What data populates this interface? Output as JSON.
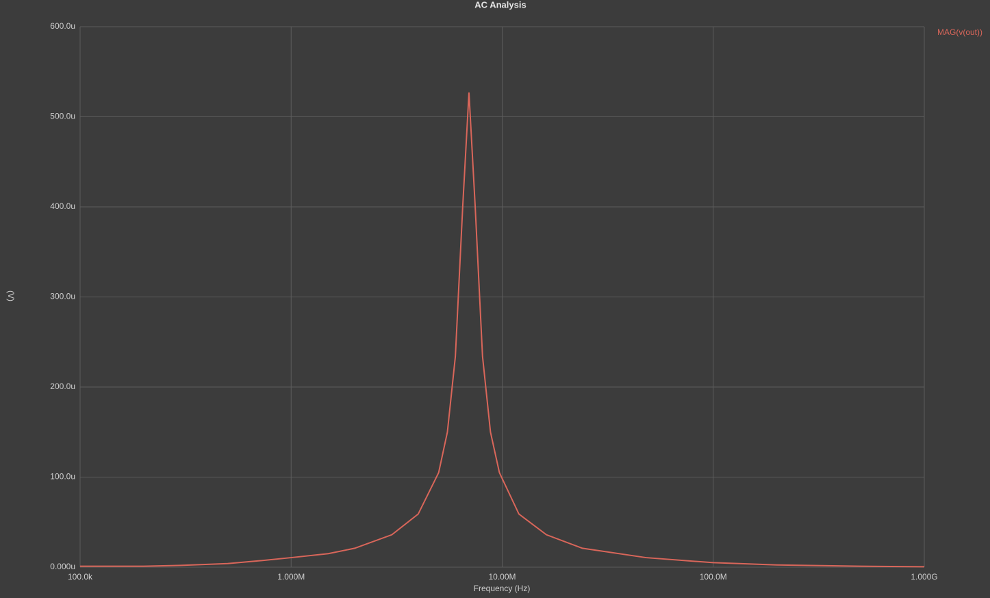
{
  "chart_data": {
    "type": "line",
    "title": "AC Analysis",
    "x_label": "Frequency (Hz)",
    "y_label": "(V)",
    "x": [
      100000,
      200000,
      300000,
      500000,
      700000,
      1000000,
      1500000,
      2000000,
      3000000,
      4000000,
      5000000,
      5500000,
      6000000,
      6500000,
      6960000,
      7450000,
      8070000,
      8800000,
      9700000,
      12000000,
      16200000,
      24000000,
      48000000,
      100000000,
      200000000,
      500000000,
      1000000000
    ],
    "series": [
      {
        "name": "MAG(v(out))",
        "color": "#d9665a",
        "values": [
          1,
          1,
          2,
          4,
          7,
          10.6,
          15,
          21,
          36,
          59,
          105,
          150,
          234,
          400,
          527,
          400,
          234,
          150,
          105,
          59,
          36,
          21,
          10.6,
          5,
          2.5,
          1,
          0.5
        ]
      }
    ],
    "xscale": "log",
    "xlim": [
      100000,
      1000000000
    ],
    "xticks": [
      {
        "value": 100000,
        "label": "100.0k"
      },
      {
        "value": 1000000,
        "label": "1.000M"
      },
      {
        "value": 10000000,
        "label": "10.00M"
      },
      {
        "value": 100000000,
        "label": "100.0M"
      },
      {
        "value": 1000000000,
        "label": "1.000G"
      }
    ],
    "ylim": [
      0,
      600
    ],
    "yticks": [
      {
        "value": 0,
        "label": "0.000u"
      },
      {
        "value": 100,
        "label": "100.0u"
      },
      {
        "value": 200,
        "label": "200.0u"
      },
      {
        "value": 300,
        "label": "300.0u"
      },
      {
        "value": 400,
        "label": "400.0u"
      },
      {
        "value": 500,
        "label": "500.0u"
      },
      {
        "value": 600,
        "label": "600.0u"
      }
    ],
    "grid": true,
    "legend": "top-right"
  }
}
